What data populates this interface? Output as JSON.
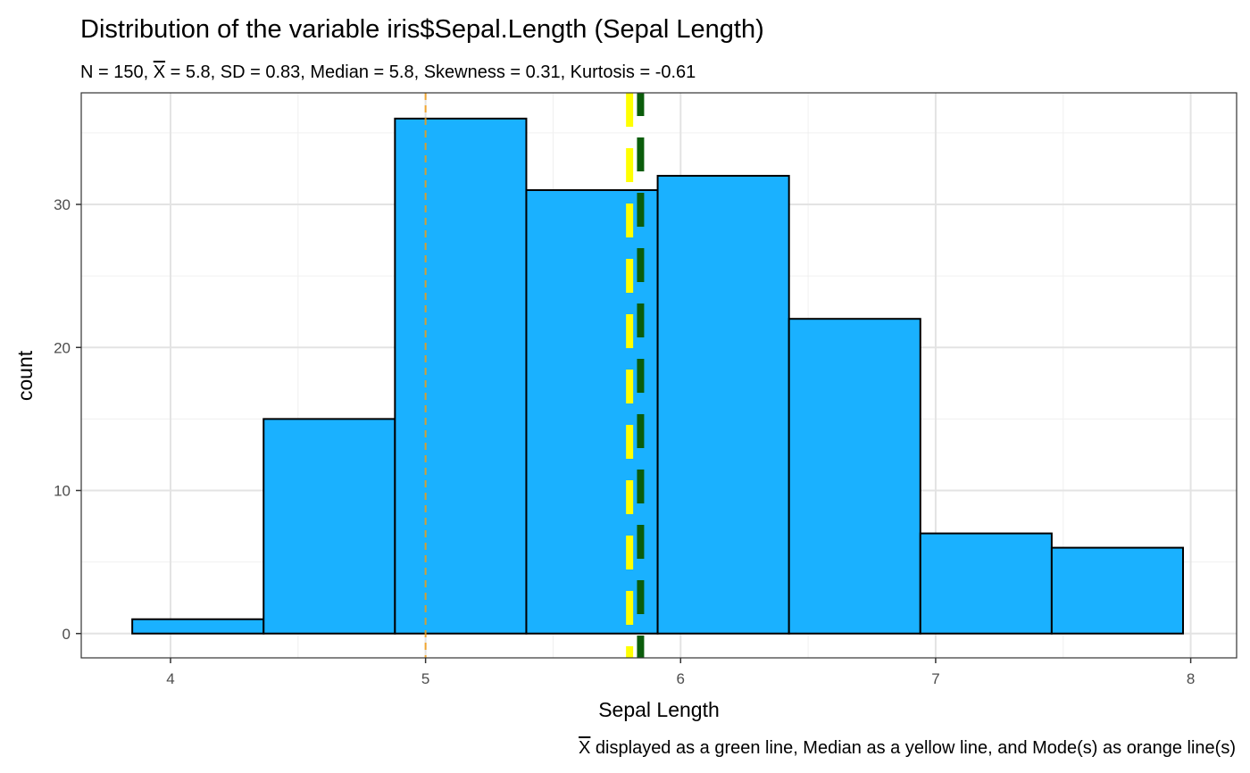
{
  "chart_data": {
    "type": "bar",
    "title": "Distribution of the variable iris$Sepal.Length (Sepal Length)",
    "subtitle": {
      "prefix": "N = 150, ",
      "mean_symbol": "X",
      "rest": " = 5.8, SD = 0.83, Median = 5.8, Skewness = 0.31, Kurtosis = -0.61"
    },
    "xlabel": "Sepal Length",
    "ylabel": "count",
    "caption": {
      "mean_symbol": "X",
      "rest": " displayed as a green line, Median as a yellow line, and Mode(s) as orange line(s)"
    },
    "xlim": [
      3.65,
      8.18
    ],
    "ylim": [
      -1.7,
      37.8
    ],
    "x_ticks": [
      4,
      5,
      6,
      7,
      8
    ],
    "y_ticks": [
      0,
      10,
      20,
      30
    ],
    "bins": [
      {
        "x0": 3.85,
        "x1": 4.365,
        "count": 1
      },
      {
        "x0": 4.365,
        "x1": 4.88,
        "count": 15
      },
      {
        "x0": 4.88,
        "x1": 5.395,
        "count": 36
      },
      {
        "x0": 5.395,
        "x1": 5.91,
        "count": 31
      },
      {
        "x0": 5.91,
        "x1": 6.425,
        "count": 32
      },
      {
        "x0": 6.425,
        "x1": 6.94,
        "count": 22
      },
      {
        "x0": 6.94,
        "x1": 7.455,
        "count": 7
      },
      {
        "x0": 7.455,
        "x1": 7.97,
        "count": 6
      }
    ],
    "reference_lines": [
      {
        "name": "mode",
        "value": 5.0,
        "color": "#F39C12"
      },
      {
        "name": "median",
        "value": 5.8,
        "color": "#FFFF00"
      },
      {
        "name": "mean",
        "value": 5.843,
        "color": "#0B5D0B"
      }
    ],
    "bar_fill": "#1AB1FF",
    "bar_stroke": "#000000",
    "grid": true,
    "panel_border": true
  }
}
